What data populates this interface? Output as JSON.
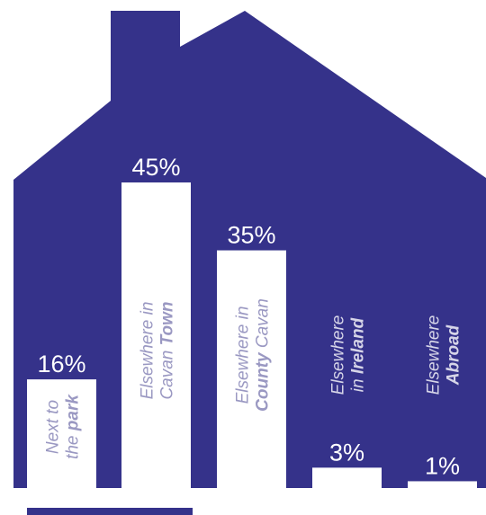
{
  "colors": {
    "house": "#35328a",
    "bar": "#ffffff",
    "value_text_on_house": "#ffffff",
    "value_text_on_white": "#35328a",
    "category_text": "#9a98c2",
    "category_text_light": "#d6d5e8"
  },
  "chart_data": {
    "type": "bar",
    "title": "",
    "xlabel": "",
    "ylabel": "",
    "ylim": [
      0,
      100
    ],
    "grid": false,
    "legend": "none",
    "categories": [
      "Next to the park",
      "Elsewhere in Cavan Town",
      "Elsewhere in County Cavan",
      "Elsewhere in Ireland",
      "Elsewhere Abroad"
    ],
    "values": [
      16,
      45,
      35,
      3,
      1
    ],
    "value_labels": [
      "16%",
      "45%",
      "35%",
      "3%",
      "1%"
    ],
    "category_labels": [
      {
        "line1": "Next to",
        "line2_plain": "the ",
        "line2_bold": "park"
      },
      {
        "line1": "Elsewhere in",
        "line2_plain": "Cavan ",
        "line2_bold": "Town"
      },
      {
        "line1": "Elsewhere in",
        "line2_plain": "",
        "line2_bold": "County",
        "line2_after": " Cavan"
      },
      {
        "line1": "Elsewhere",
        "line2_plain": "in ",
        "line2_bold": "Ireland"
      },
      {
        "line1": "Elsewhere",
        "line2_plain": "",
        "line2_bold": "Abroad"
      }
    ]
  }
}
